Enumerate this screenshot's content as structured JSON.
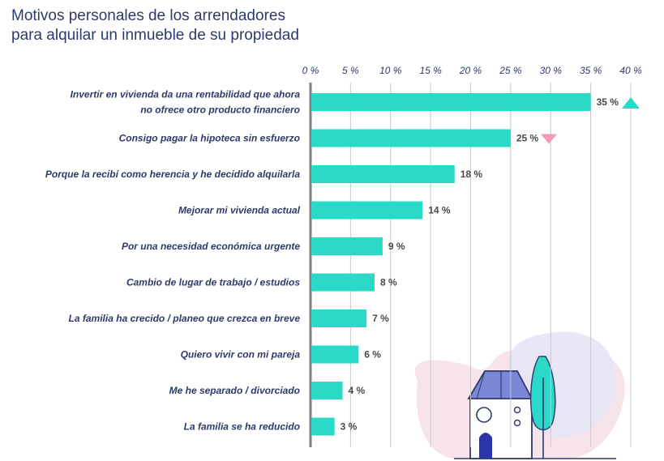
{
  "title_lines": [
    "Motivos personales de los arrendadores",
    "para alquilar un inmueble de su propiedad"
  ],
  "colors": {
    "bar": "#2ad9c8",
    "grid": "#c8c8c8",
    "axis": "#808080",
    "title": "#2d3a6b",
    "up_marker": "#2ad9c8",
    "down_marker": "#f29ab8"
  },
  "chart_data": {
    "type": "bar",
    "orientation": "horizontal",
    "title": "Motivos personales de los arrendadores para alquilar un inmueble de su propiedad",
    "xlim": [
      0,
      40
    ],
    "ticks": [
      0,
      5,
      10,
      15,
      20,
      25,
      30,
      35,
      40
    ],
    "tick_labels": [
      "0 %",
      "5 %",
      "10 %",
      "15 %",
      "20 %",
      "25 %",
      "30 %",
      "35 %",
      "40 %"
    ],
    "grid": true,
    "categories": [
      [
        "Invertir en vivienda da una rentabilidad que ahora",
        "no ofrece otro producto financiero"
      ],
      [
        "Consigo pagar la hipoteca sin esfuerzo"
      ],
      [
        "Porque la recibí como herencia y he decidido alquilarla"
      ],
      [
        "Mejorar mi vivienda actual"
      ],
      [
        "Por una necesidad económica urgente"
      ],
      [
        "Cambio de lugar de trabajo / estudios"
      ],
      [
        "La familia ha crecido / planeo que crezca en breve"
      ],
      [
        "Quiero vivir con mi pareja"
      ],
      [
        "Me he separado / divorciado"
      ],
      [
        "La familia se ha reducido"
      ]
    ],
    "values": [
      35,
      25,
      18,
      14,
      9,
      8,
      7,
      6,
      4,
      3
    ],
    "value_labels": [
      "35 %",
      "25 %",
      "18 %",
      "14 %",
      "9 %",
      "8 %",
      "7 %",
      "6 %",
      "4 %",
      "3 %"
    ],
    "markers": [
      {
        "index": 0,
        "direction": "up"
      },
      {
        "index": 1,
        "direction": "down"
      }
    ]
  }
}
